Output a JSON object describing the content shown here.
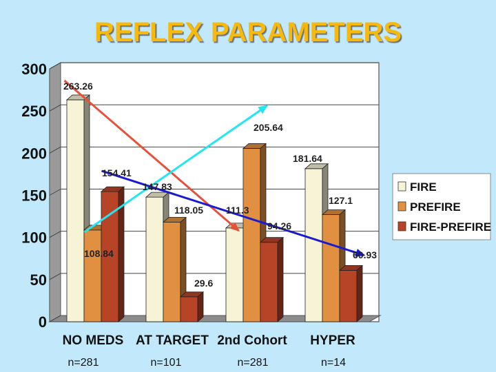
{
  "chart_data": {
    "type": "bar",
    "title": "REFLEX PARAMETERS",
    "categories": [
      "NO MEDS",
      "AT TARGET",
      "2nd Cohort",
      "HYPER"
    ],
    "sample_sizes": [
      "n=281",
      "n=101",
      "n=281",
      "n=14"
    ],
    "series": [
      {
        "name": "FIRE",
        "values": [
          263.26,
          147.83,
          111.3,
          181.64
        ],
        "color": "#f6f3d6"
      },
      {
        "name": "PREFIRE",
        "values": [
          108.84,
          118.05,
          205.64,
          127.1
        ],
        "color": "#e09040"
      },
      {
        "name": "FIRE-PREFIRE",
        "values": [
          154.41,
          29.6,
          94.26,
          60.93
        ],
        "color": "#b84428"
      }
    ],
    "data_labels": [
      {
        "text": "263.26"
      },
      {
        "text": "108.84"
      },
      {
        "text": "154.41"
      },
      {
        "text": "147.83"
      },
      {
        "text": "118.05"
      },
      {
        "text": "29.6"
      },
      {
        "text": "111.3"
      },
      {
        "text": "205.64"
      },
      {
        "text": "94.26"
      },
      {
        "text": "181.64"
      },
      {
        "text": "127.1"
      },
      {
        "text": "60.93"
      }
    ],
    "trend_lines": [
      {
        "series": "FIRE",
        "color": "#e8503a",
        "from_category": "NO MEDS",
        "to_category": "2nd Cohort"
      },
      {
        "series": "PREFIRE",
        "color": "#22e6f0",
        "from_category": "NO MEDS",
        "to_category": "2nd Cohort"
      },
      {
        "series": "FIRE-PREFIRE",
        "color": "#1a1ad0",
        "from_category": "NO MEDS",
        "to_category": "HYPER"
      }
    ],
    "yticks": [
      0,
      50,
      100,
      150,
      200,
      250,
      300
    ],
    "ylim": [
      0,
      300
    ],
    "grid": true,
    "legend_position": "right",
    "title_color": "#f7b90f"
  }
}
